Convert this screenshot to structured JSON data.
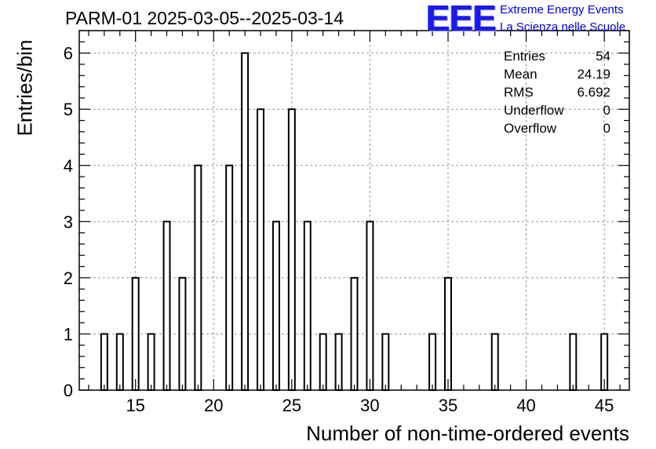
{
  "header": {
    "title": "PARM-01 2025-03-05--2025-03-14",
    "logo_text": "EEE",
    "logo_line1": "Extreme Energy Events",
    "logo_line2": "La Scienza nelle Scuole",
    "logo_color": "#1a1aee"
  },
  "stats": [
    {
      "label": "Entries",
      "value": "54"
    },
    {
      "label": "Mean",
      "value": "24.19"
    },
    {
      "label": "RMS",
      "value": "6.692"
    },
    {
      "label": "Underflow",
      "value": "0"
    },
    {
      "label": "Overflow",
      "value": "0"
    }
  ],
  "chart_data": {
    "type": "bar",
    "title": "PARM-01 2025-03-05--2025-03-14",
    "xlabel": "Number of non-time-ordered events",
    "ylabel": "Entries/bin",
    "xlim": [
      11.4,
      46.6
    ],
    "ylim": [
      0,
      6.4
    ],
    "bin_width": 0.4,
    "x_ticks": [
      15,
      20,
      25,
      30,
      35,
      40,
      45
    ],
    "y_ticks": [
      0,
      1,
      2,
      3,
      4,
      5,
      6
    ],
    "grid": true,
    "x": [
      13,
      14,
      15,
      16,
      17,
      18,
      19,
      21,
      22,
      23,
      24,
      25,
      26,
      27,
      28,
      29,
      30,
      31,
      34,
      35,
      38,
      43,
      45
    ],
    "values": [
      1,
      1,
      2,
      1,
      3,
      2,
      4,
      4,
      6,
      5,
      3,
      5,
      3,
      1,
      1,
      2,
      3,
      1,
      1,
      2,
      1,
      1,
      1
    ]
  }
}
